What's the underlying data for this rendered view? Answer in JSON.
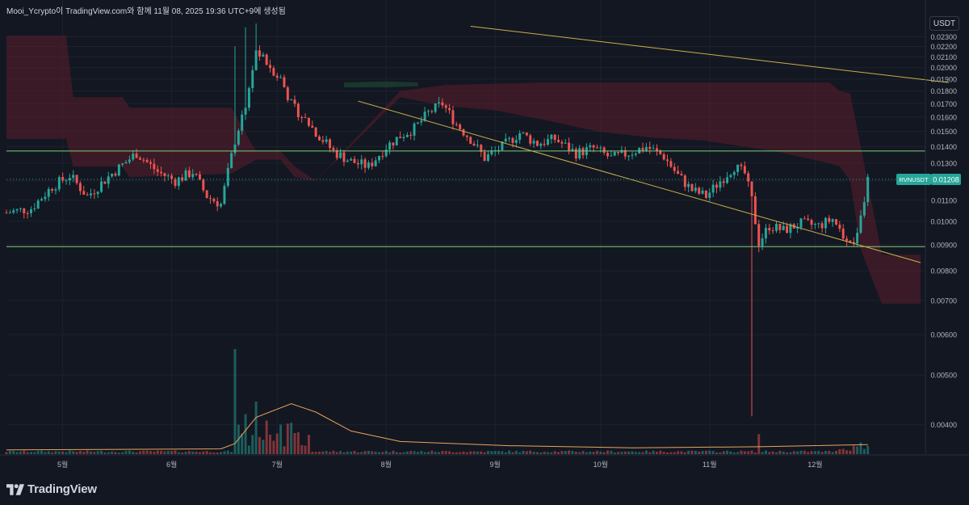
{
  "header": {
    "attribution": "Mooi_Ycrypto이 TradingView.com와 함께 11월 08, 2025 19:36 UTC+9에 생성됨"
  },
  "toolbar": {
    "currency_label": "USDT"
  },
  "logo": {
    "text": "TradingView",
    "icon": "tradingview-logo-icon"
  },
  "colors": {
    "background": "#131722",
    "up": "#26a69a",
    "down": "#ef5350",
    "cloud_bear": "#5b1e2a",
    "cloud_bull": "#1b3d2f",
    "trendline": "#c9b04a",
    "hline": "#7ccf7a",
    "volume_ma": "#e8a35a"
  },
  "chart_data": {
    "type": "candlestick",
    "symbol": "RVNUSDT",
    "last_price": "0.01208",
    "y_axis": {
      "scale": "log",
      "range": [
        0.0035,
        0.0245
      ],
      "ticks": [
        "0.00400",
        "0.00500",
        "0.00600",
        "0.00700",
        "0.00800",
        "0.00900",
        "0.01000",
        "0.01100",
        "0.01200",
        "0.01300",
        "0.01400",
        "0.01500",
        "0.01600",
        "0.01700",
        "0.01800",
        "0.01900",
        "0.02000",
        "0.02100",
        "0.02200",
        "0.02300"
      ]
    },
    "x_axis": {
      "type": "date",
      "range": [
        "2025-04-15",
        "2025-12-31"
      ],
      "ticks": [
        {
          "label": "5월",
          "date": "2025-05-01"
        },
        {
          "label": "6월",
          "date": "2025-06-01"
        },
        {
          "label": "7월",
          "date": "2025-07-01"
        },
        {
          "label": "8월",
          "date": "2025-08-01"
        },
        {
          "label": "9월",
          "date": "2025-09-01"
        },
        {
          "label": "10월",
          "date": "2025-10-01"
        },
        {
          "label": "11월",
          "date": "2025-11-01"
        },
        {
          "label": "12월",
          "date": "2025-12-01"
        }
      ]
    },
    "price_path": [
      [
        "2025-04-15",
        0.0104
      ],
      [
        "2025-04-22",
        0.0106
      ],
      [
        "2025-04-28",
        0.0117
      ],
      [
        "2025-05-03",
        0.0123
      ],
      [
        "2025-05-08",
        0.0112
      ],
      [
        "2025-05-15",
        0.0124
      ],
      [
        "2025-05-22",
        0.0136
      ],
      [
        "2025-05-28",
        0.0125
      ],
      [
        "2025-06-02",
        0.012
      ],
      [
        "2025-06-07",
        0.0125
      ],
      [
        "2025-06-11",
        0.0112
      ],
      [
        "2025-06-15",
        0.0108
      ],
      [
        "2025-06-19",
        0.0144
      ],
      [
        "2025-06-22",
        0.017
      ],
      [
        "2025-06-25",
        0.0215
      ],
      [
        "2025-06-28",
        0.0205
      ],
      [
        "2025-07-02",
        0.019
      ],
      [
        "2025-07-05",
        0.017
      ],
      [
        "2025-07-09",
        0.0158
      ],
      [
        "2025-07-13",
        0.0147
      ],
      [
        "2025-07-17",
        0.0137
      ],
      [
        "2025-07-22",
        0.0131
      ],
      [
        "2025-07-27",
        0.0128
      ],
      [
        "2025-08-01",
        0.014
      ],
      [
        "2025-08-05",
        0.0147
      ],
      [
        "2025-08-09",
        0.0152
      ],
      [
        "2025-08-13",
        0.0163
      ],
      [
        "2025-08-17",
        0.017
      ],
      [
        "2025-08-21",
        0.0155
      ],
      [
        "2025-08-25",
        0.0145
      ],
      [
        "2025-08-29",
        0.0133
      ],
      [
        "2025-09-03",
        0.014
      ],
      [
        "2025-09-08",
        0.0149
      ],
      [
        "2025-09-13",
        0.0142
      ],
      [
        "2025-09-18",
        0.0145
      ],
      [
        "2025-09-24",
        0.0136
      ],
      [
        "2025-09-29",
        0.0139
      ],
      [
        "2025-10-04",
        0.0133
      ],
      [
        "2025-10-09",
        0.0136
      ],
      [
        "2025-10-14",
        0.014
      ],
      [
        "2025-10-19",
        0.0134
      ],
      [
        "2025-10-23",
        0.0123
      ],
      [
        "2025-10-27",
        0.0115
      ],
      [
        "2025-10-31",
        0.0112
      ],
      [
        "2025-11-04",
        0.012
      ],
      [
        "2025-11-08",
        0.0128
      ],
      [
        "2025-11-11",
        0.0124
      ],
      [
        "2025-11-13",
        0.011
      ],
      [
        "2025-11-15",
        0.0091
      ],
      [
        "2025-11-18",
        0.0098
      ],
      [
        "2025-11-22",
        0.0096
      ],
      [
        "2025-11-27",
        0.0099
      ],
      [
        "2025-12-02",
        0.0098
      ],
      [
        "2025-12-06",
        0.0101
      ],
      [
        "2025-12-09",
        0.0094
      ],
      [
        "2025-12-12",
        0.0092
      ],
      [
        "2025-12-14",
        0.0101
      ],
      [
        "2025-12-16",
        0.0121
      ]
    ],
    "ichimoku_cloud": {
      "bear_upper": [
        [
          "2025-04-15",
          0.0231
        ],
        [
          "2025-05-02",
          0.0231
        ],
        [
          "2025-05-04",
          0.0175
        ],
        [
          "2025-05-18",
          0.0175
        ],
        [
          "2025-05-20",
          0.0167
        ],
        [
          "2025-06-18",
          0.0167
        ],
        [
          "2025-06-25",
          0.0137
        ],
        [
          "2025-07-02",
          0.0137
        ],
        [
          "2025-07-06",
          0.0128
        ],
        [
          "2025-07-12",
          0.012
        ],
        [
          "2025-08-05",
          0.018
        ],
        [
          "2025-08-18",
          0.0185
        ],
        [
          "2025-09-01",
          0.0186
        ],
        [
          "2025-09-15",
          0.0187
        ],
        [
          "2025-09-30",
          0.0187
        ],
        [
          "2025-10-15",
          0.0187
        ],
        [
          "2025-10-30",
          0.0187
        ],
        [
          "2025-11-20",
          0.0187
        ],
        [
          "2025-12-05",
          0.0187
        ],
        [
          "2025-12-08",
          0.018
        ],
        [
          "2025-12-11",
          0.0178
        ],
        [
          "2025-12-14",
          0.014
        ],
        [
          "2025-12-20",
          0.0086
        ],
        [
          "2025-12-31",
          0.0086
        ]
      ],
      "bear_lower": [
        [
          "2025-04-15",
          0.0145
        ],
        [
          "2025-05-02",
          0.0145
        ],
        [
          "2025-05-04",
          0.0128
        ],
        [
          "2025-05-18",
          0.0128
        ],
        [
          "2025-05-20",
          0.0122
        ],
        [
          "2025-06-18",
          0.0124
        ],
        [
          "2025-06-25",
          0.0132
        ],
        [
          "2025-07-02",
          0.0132
        ],
        [
          "2025-07-06",
          0.0122
        ],
        [
          "2025-07-12",
          0.012
        ],
        [
          "2025-08-05",
          0.0175
        ],
        [
          "2025-08-18",
          0.0168
        ],
        [
          "2025-09-01",
          0.0165
        ],
        [
          "2025-09-15",
          0.0158
        ],
        [
          "2025-09-30",
          0.015
        ],
        [
          "2025-10-15",
          0.0146
        ],
        [
          "2025-10-30",
          0.0144
        ],
        [
          "2025-11-20",
          0.0137
        ],
        [
          "2025-12-05",
          0.013
        ],
        [
          "2025-12-08",
          0.0128
        ],
        [
          "2025-12-11",
          0.012
        ],
        [
          "2025-12-14",
          0.0088
        ],
        [
          "2025-12-20",
          0.0069
        ],
        [
          "2025-12-31",
          0.0069
        ]
      ],
      "bull": [
        [
          "2025-07-20",
          0.0187,
          0.0183
        ],
        [
          "2025-08-01",
          0.0188,
          0.0183
        ],
        [
          "2025-08-10",
          0.0187,
          0.0184
        ]
      ]
    },
    "trendlines": [
      {
        "from": [
          "2025-07-24",
          0.0172
        ],
        "to": [
          "2025-12-31",
          0.0083
        ]
      },
      {
        "from": [
          "2025-08-25",
          0.0241
        ],
        "to": [
          "2026-01-08",
          0.0187
        ]
      }
    ],
    "horizontal_levels": [
      0.01373,
      0.00892
    ],
    "volume_ma_path": [
      [
        "2025-04-15",
        0.04
      ],
      [
        "2025-06-15",
        0.05
      ],
      [
        "2025-06-19",
        0.1
      ],
      [
        "2025-06-25",
        0.35
      ],
      [
        "2025-07-05",
        0.48
      ],
      [
        "2025-07-12",
        0.4
      ],
      [
        "2025-07-22",
        0.22
      ],
      [
        "2025-08-05",
        0.12
      ],
      [
        "2025-09-05",
        0.08
      ],
      [
        "2025-10-10",
        0.06
      ],
      [
        "2025-11-15",
        0.07
      ],
      [
        "2025-12-16",
        0.09
      ]
    ],
    "volume_spikes": [
      [
        "2025-06-19",
        1.0
      ],
      [
        "2025-06-22",
        0.38
      ],
      [
        "2025-06-25",
        0.5
      ],
      [
        "2025-06-28",
        0.32
      ],
      [
        "2025-07-02",
        0.28
      ],
      [
        "2025-07-06",
        0.2
      ],
      [
        "2025-11-15",
        0.19
      ],
      [
        "2025-12-12",
        0.08
      ],
      [
        "2025-12-14",
        0.11
      ],
      [
        "2025-12-16",
        0.08
      ]
    ]
  }
}
